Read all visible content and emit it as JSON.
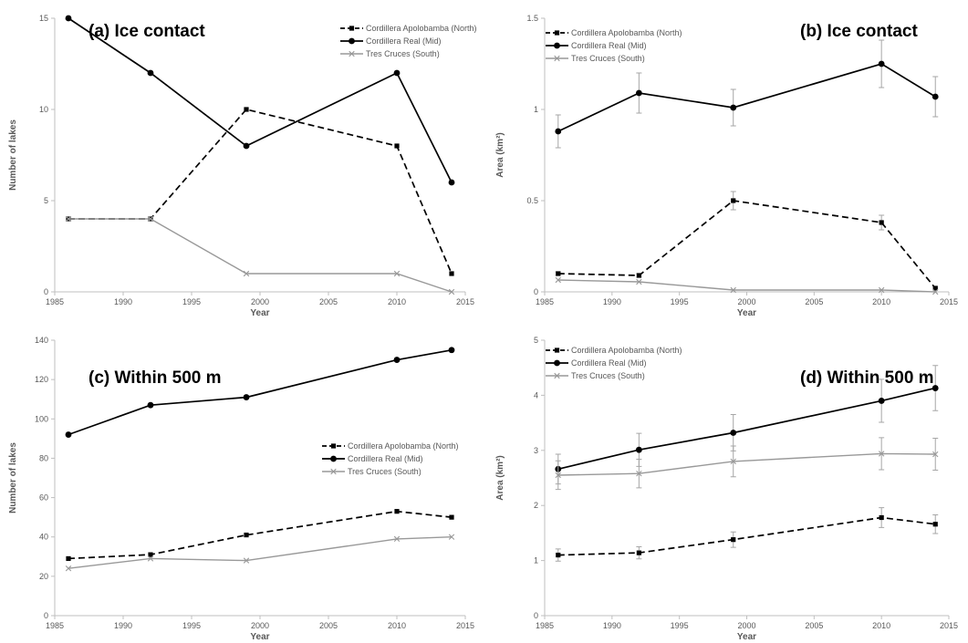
{
  "colors": {
    "north": "#000000",
    "mid": "#000000",
    "south": "#999999",
    "axis": "#bfbfbf",
    "text": "#595959"
  },
  "series_styles": {
    "Cordillera Apolobamba (North)": {
      "dash": "dashed",
      "marker": "square"
    },
    "Cordillera Real (Mid)": {
      "dash": "solid",
      "marker": "circle"
    },
    "Tres Cruces (South)": {
      "dash": "solid",
      "marker": "cross"
    }
  },
  "chart_data": [
    {
      "panel": "a",
      "type": "line",
      "title": "(a) Ice contact",
      "xlabel": "Year",
      "ylabel": "Number of lakes",
      "xlim": [
        1985,
        2015
      ],
      "ylim": [
        0,
        15
      ],
      "xticks": [
        "1985",
        "1990",
        "1995",
        "2000",
        "2005",
        "2010",
        "2015"
      ],
      "yticks": [
        "0",
        "5",
        "10",
        "15"
      ],
      "grid": false,
      "legend_position": "top-right",
      "x": [
        1986,
        1992,
        1999,
        2010,
        2014
      ],
      "series": [
        {
          "name": "Cordillera Apolobamba (North)",
          "values": [
            4,
            4,
            10,
            8,
            1
          ]
        },
        {
          "name": "Cordillera Real (Mid)",
          "values": [
            15,
            12,
            8,
            12,
            6
          ]
        },
        {
          "name": "Tres Cruces (South)",
          "values": [
            4,
            4,
            1,
            1,
            0
          ]
        }
      ]
    },
    {
      "panel": "b",
      "type": "line",
      "title": "(b) Ice contact",
      "xlabel": "Year",
      "ylabel": "Area (km²)",
      "xlim": [
        1985,
        2015
      ],
      "ylim": [
        0,
        1.5
      ],
      "xticks": [
        "1985",
        "1990",
        "1995",
        "2000",
        "2005",
        "2010",
        "2015"
      ],
      "yticks": [
        "0",
        "0.5",
        "1",
        "1.5"
      ],
      "grid": false,
      "legend_position": "top-left",
      "x": [
        1986,
        1992,
        1999,
        2010,
        2014
      ],
      "series": [
        {
          "name": "Cordillera Apolobamba (North)",
          "values": [
            0.1,
            0.09,
            0.5,
            0.38,
            0.02
          ],
          "errors": [
            0.01,
            0.01,
            0.05,
            0.04,
            0.005
          ]
        },
        {
          "name": "Cordillera Real (Mid)",
          "values": [
            0.88,
            1.09,
            1.01,
            1.25,
            1.07
          ],
          "errors": [
            0.09,
            0.11,
            0.1,
            0.13,
            0.11
          ]
        },
        {
          "name": "Tres Cruces (South)",
          "values": [
            0.065,
            0.055,
            0.01,
            0.01,
            0
          ],
          "errors": [
            0,
            0,
            0,
            0,
            0
          ]
        }
      ]
    },
    {
      "panel": "c",
      "type": "line",
      "title": "(c) Within 500 m",
      "xlabel": "Year",
      "ylabel": "Number of lakes",
      "xlim": [
        1985,
        2015
      ],
      "ylim": [
        0,
        140
      ],
      "xticks": [
        "1985",
        "1990",
        "1995",
        "2000",
        "2005",
        "2010",
        "2015"
      ],
      "yticks": [
        "0",
        "20",
        "40",
        "60",
        "80",
        "100",
        "120",
        "140"
      ],
      "grid": false,
      "legend_position": "right",
      "x": [
        1986,
        1992,
        1999,
        2010,
        2014
      ],
      "series": [
        {
          "name": "Cordillera Apolobamba (North)",
          "values": [
            29,
            31,
            41,
            53,
            50
          ]
        },
        {
          "name": "Cordillera Real (Mid)",
          "values": [
            92,
            107,
            111,
            130,
            135
          ]
        },
        {
          "name": "Tres Cruces (South)",
          "values": [
            24,
            29,
            28,
            39,
            40
          ]
        }
      ]
    },
    {
      "panel": "d",
      "type": "line",
      "title": "(d) Within 500 m",
      "xlabel": "Year",
      "ylabel": "Area (km²)",
      "xlim": [
        1985,
        2015
      ],
      "ylim": [
        0,
        5
      ],
      "xticks": [
        "1985",
        "1990",
        "1995",
        "2000",
        "2005",
        "2010",
        "2015"
      ],
      "yticks": [
        "0",
        "1",
        "2",
        "3",
        "4",
        "5"
      ],
      "grid": false,
      "legend_position": "top-left",
      "x": [
        1986,
        1992,
        1999,
        2010,
        2014
      ],
      "series": [
        {
          "name": "Cordillera Apolobamba (North)",
          "values": [
            1.1,
            1.14,
            1.38,
            1.78,
            1.66
          ],
          "errors": [
            0.11,
            0.11,
            0.14,
            0.18,
            0.17
          ]
        },
        {
          "name": "Cordillera Real (Mid)",
          "values": [
            2.66,
            3.01,
            3.32,
            3.9,
            4.13
          ],
          "errors": [
            0.27,
            0.3,
            0.33,
            0.39,
            0.41
          ]
        },
        {
          "name": "Tres Cruces (South)",
          "values": [
            2.55,
            2.58,
            2.8,
            2.94,
            2.93
          ],
          "errors": [
            0.26,
            0.26,
            0.28,
            0.29,
            0.29
          ]
        }
      ]
    }
  ]
}
